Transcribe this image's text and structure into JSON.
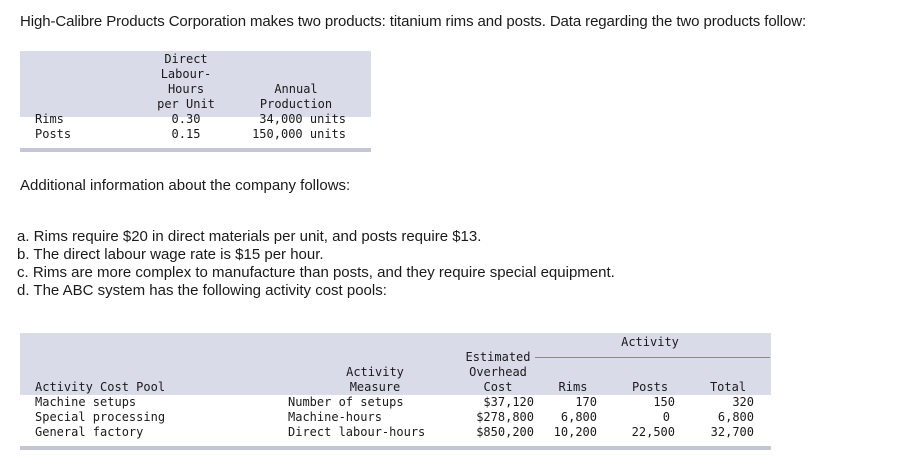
{
  "intro": "High-Calibre Products Corporation makes two products: titanium rims and posts. Data regarding the two products follow:",
  "table1": {
    "headers": {
      "dlh": [
        "Direct",
        "Labour-",
        "Hours",
        "per Unit"
      ],
      "annual": [
        "Annual",
        "Production"
      ]
    },
    "rows": [
      {
        "product": "Rims",
        "dlh": "0.30",
        "annual": "34,000 units"
      },
      {
        "product": "Posts",
        "dlh": "0.15",
        "annual": "150,000 units"
      }
    ]
  },
  "additional": "Additional information about the company follows:",
  "items": [
    "a. Rims require $20 in direct materials per unit, and posts require $13.",
    "b. The direct labour wage rate is $15 per hour.",
    "c. Rims are more complex to manufacture than posts, and they require special equipment.",
    "d. The ABC system has the following activity cost pools:"
  ],
  "table2": {
    "group_header": "Activity",
    "headers": {
      "pool": "Activity Cost Pool",
      "measure": [
        "Activity",
        "Measure"
      ],
      "cost": [
        "Estimated",
        "Overhead",
        "Cost"
      ],
      "rims": "Rims",
      "posts": "Posts",
      "total": "Total"
    },
    "rows": [
      {
        "pool": "Machine setups",
        "measure": "Number of setups",
        "cost": "$37,120",
        "rims": "170",
        "posts": "150",
        "total": "320"
      },
      {
        "pool": "Special processing",
        "measure": "Machine-hours",
        "cost": "$278,800",
        "rims": "6,800",
        "posts": "0",
        "total": "6,800"
      },
      {
        "pool": "General factory",
        "measure": "Direct labour-hours",
        "cost": "$850,200",
        "rims": "10,200",
        "posts": "22,500",
        "total": "32,700"
      }
    ]
  }
}
